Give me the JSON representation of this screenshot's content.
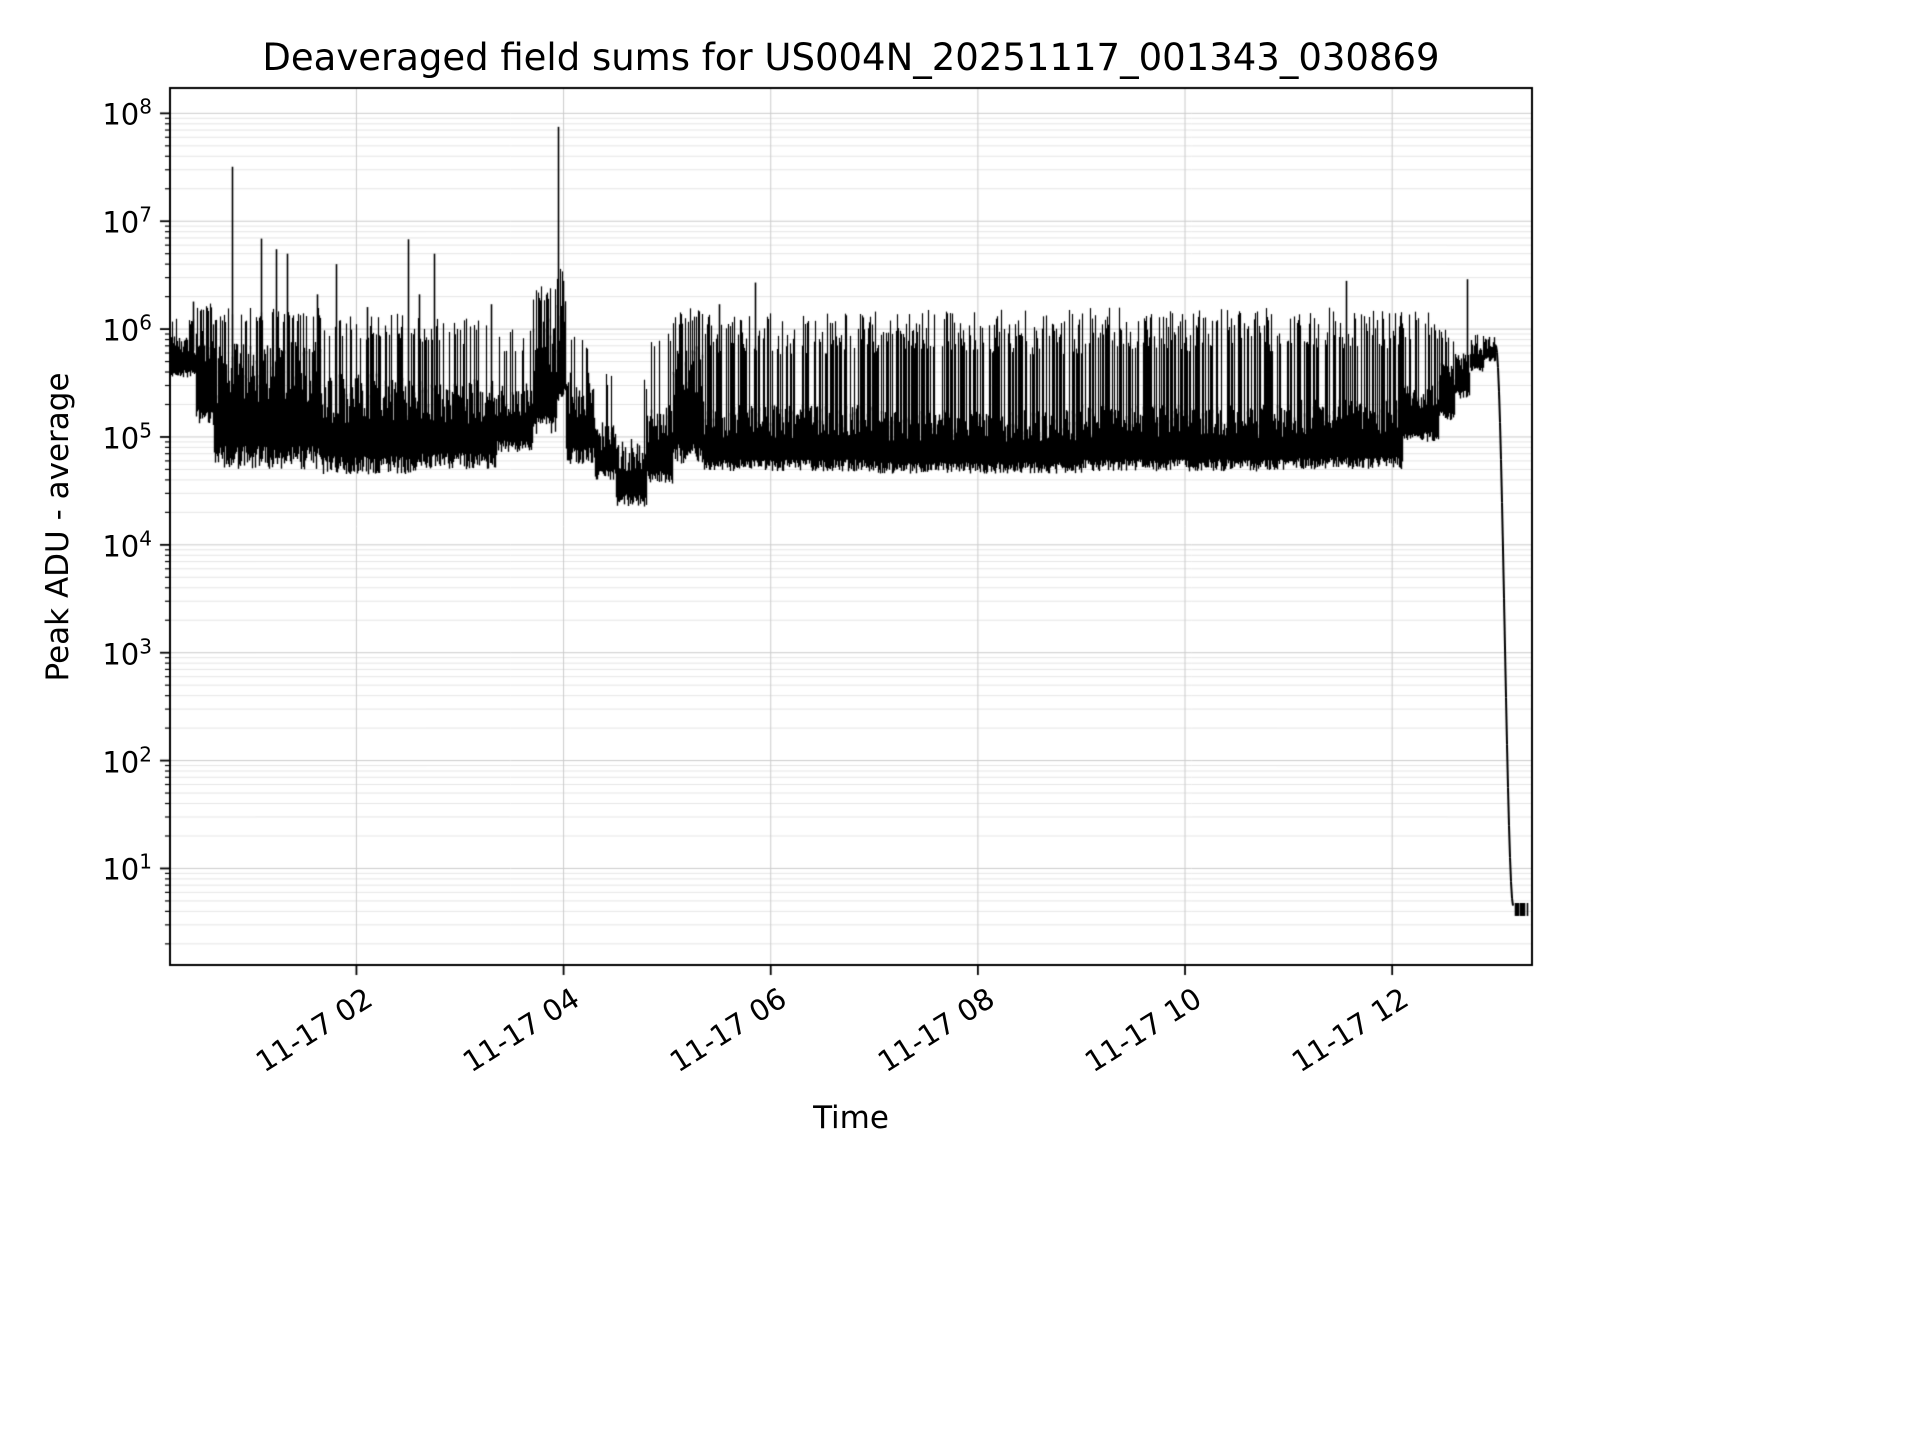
{
  "chart_data": {
    "type": "line",
    "title": "Deaveraged field sums for US004N_20251117_001343_030869",
    "xlabel": "Time",
    "ylabel": "Peak ADU - average",
    "yscale": "log",
    "ylim": [
      1.3,
      172000000
    ],
    "ylog_range": [
      0.105,
      8.235
    ],
    "xlim_hours": [
      0.2,
      13.35
    ],
    "grid": true,
    "legend": "none",
    "line_color": "#000000",
    "grid_major_color": "#cccccc",
    "grid_minor_color": "#e6e6e6",
    "x_ticks": [
      {
        "hour": 2,
        "label": "11-17 02"
      },
      {
        "hour": 4,
        "label": "11-17 04"
      },
      {
        "hour": 6,
        "label": "11-17 06"
      },
      {
        "hour": 8,
        "label": "11-17 08"
      },
      {
        "hour": 10,
        "label": "11-17 10"
      },
      {
        "hour": 12,
        "label": "11-17 12"
      }
    ],
    "y_tick_exponents": [
      8,
      7,
      6,
      5,
      4,
      3,
      2,
      1
    ],
    "series_envelope": {
      "description": "Dense noisy time series of peak ADU sums; values given as log10 envelope bands (body lo/hi), occasional spikes up to spike_log with probability spike_prob per sample; t in hours after 11-17 00:00",
      "segments": [
        {
          "type": "noise",
          "t0": 0.2,
          "t1": 0.45,
          "lo_log": 5.55,
          "hi_log": 5.95,
          "spike_log": 6.1,
          "spike_prob": 0.3
        },
        {
          "type": "noise",
          "t0": 0.45,
          "t1": 0.62,
          "lo_log": 5.1,
          "hi_log": 6.05,
          "spike_log": 6.25,
          "spike_prob": 0.5
        },
        {
          "type": "noise",
          "t0": 0.62,
          "t1": 1.65,
          "lo_log": 4.7,
          "hi_log": 5.9,
          "spike_log": 6.2,
          "spike_prob": 0.4
        },
        {
          "type": "noise",
          "t0": 1.65,
          "t1": 2.6,
          "lo_log": 4.65,
          "hi_log": 5.6,
          "spike_log": 6.15,
          "spike_prob": 0.35
        },
        {
          "type": "noise",
          "t0": 2.6,
          "t1": 3.35,
          "lo_log": 4.7,
          "hi_log": 5.55,
          "spike_log": 6.1,
          "spike_prob": 0.35
        },
        {
          "type": "noise",
          "t0": 3.35,
          "t1": 3.7,
          "lo_log": 4.85,
          "hi_log": 5.5,
          "spike_log": 6.0,
          "spike_prob": 0.3
        },
        {
          "type": "noise",
          "t0": 3.7,
          "t1": 3.93,
          "lo_log": 5.0,
          "hi_log": 6.1,
          "spike_log": 6.4,
          "spike_prob": 0.5
        },
        {
          "type": "noise",
          "t0": 3.93,
          "t1": 4.02,
          "lo_log": 5.3,
          "hi_log": 6.3,
          "spike_log": 6.6,
          "spike_prob": 0.6
        },
        {
          "type": "noise",
          "t0": 4.02,
          "t1": 4.3,
          "lo_log": 4.75,
          "hi_log": 5.6,
          "spike_log": 5.95,
          "spike_prob": 0.3
        },
        {
          "type": "noise",
          "t0": 4.3,
          "t1": 4.5,
          "lo_log": 4.6,
          "hi_log": 5.15,
          "spike_log": 5.75,
          "spike_prob": 0.2
        },
        {
          "type": "noise",
          "t0": 4.5,
          "t1": 4.8,
          "lo_log": 4.35,
          "hi_log": 5.0,
          "spike_log": 5.55,
          "spike_prob": 0.2
        },
        {
          "type": "noise",
          "t0": 4.8,
          "t1": 5.05,
          "lo_log": 4.55,
          "hi_log": 5.3,
          "spike_log": 6.1,
          "spike_prob": 0.3
        },
        {
          "type": "noise",
          "t0": 5.05,
          "t1": 5.35,
          "lo_log": 4.75,
          "hi_log": 5.85,
          "spike_log": 6.2,
          "spike_prob": 0.5
        },
        {
          "type": "noise",
          "t0": 5.35,
          "t1": 7.0,
          "lo_log": 4.68,
          "hi_log": 5.3,
          "spike_log": 6.15,
          "spike_prob": 0.55
        },
        {
          "type": "noise",
          "t0": 7.0,
          "t1": 9.0,
          "lo_log": 4.66,
          "hi_log": 5.25,
          "spike_log": 6.18,
          "spike_prob": 0.6
        },
        {
          "type": "noise",
          "t0": 9.0,
          "t1": 11.0,
          "lo_log": 4.68,
          "hi_log": 5.3,
          "spike_log": 6.2,
          "spike_prob": 0.6
        },
        {
          "type": "noise",
          "t0": 11.0,
          "t1": 12.1,
          "lo_log": 4.7,
          "hi_log": 5.35,
          "spike_log": 6.2,
          "spike_prob": 0.55
        },
        {
          "type": "noise",
          "t0": 12.1,
          "t1": 12.45,
          "lo_log": 4.95,
          "hi_log": 5.5,
          "spike_log": 6.18,
          "spike_prob": 0.45
        },
        {
          "type": "noise",
          "t0": 12.45,
          "t1": 12.6,
          "lo_log": 5.15,
          "hi_log": 5.7,
          "spike_log": 6.0,
          "spike_prob": 0.3
        },
        {
          "type": "noise",
          "t0": 12.6,
          "t1": 12.75,
          "lo_log": 5.35,
          "hi_log": 5.8,
          "spike_log": 5.95,
          "spike_prob": 0.2
        },
        {
          "type": "noise",
          "t0": 12.75,
          "t1": 12.88,
          "lo_log": 5.6,
          "hi_log": 5.9,
          "spike_log": 5.95,
          "spike_prob": 0.1
        },
        {
          "type": "noise",
          "t0": 12.88,
          "t1": 13.0,
          "lo_log": 5.7,
          "hi_log": 5.93,
          "spike_log": 5.93,
          "spike_prob": 0.0
        },
        {
          "type": "drop",
          "t0": 13.0,
          "t1": 13.17,
          "from_log": 5.85,
          "to_log": 0.65
        },
        {
          "type": "flat",
          "t0": 13.17,
          "t1": 13.31,
          "level_log": 0.62,
          "jitter_log": 0.06
        }
      ],
      "spikes": [
        {
          "t": 0.42,
          "value": 1800000
        },
        {
          "t": 0.8,
          "value": 32000000
        },
        {
          "t": 1.08,
          "value": 6900000
        },
        {
          "t": 1.22,
          "value": 5500000
        },
        {
          "t": 1.33,
          "value": 5000000
        },
        {
          "t": 1.62,
          "value": 2100000
        },
        {
          "t": 1.8,
          "value": 4000000
        },
        {
          "t": 2.1,
          "value": 1600000
        },
        {
          "t": 2.5,
          "value": 6800000
        },
        {
          "t": 2.6,
          "value": 2100000
        },
        {
          "t": 2.75,
          "value": 5000000
        },
        {
          "t": 3.3,
          "value": 1700000
        },
        {
          "t": 3.95,
          "value": 75000000
        },
        {
          "t": 3.99,
          "value": 2800000
        },
        {
          "t": 5.5,
          "value": 1700000
        },
        {
          "t": 5.85,
          "value": 2700000
        },
        {
          "t": 11.55,
          "value": 2800000
        },
        {
          "t": 12.72,
          "value": 2900000
        }
      ]
    }
  }
}
